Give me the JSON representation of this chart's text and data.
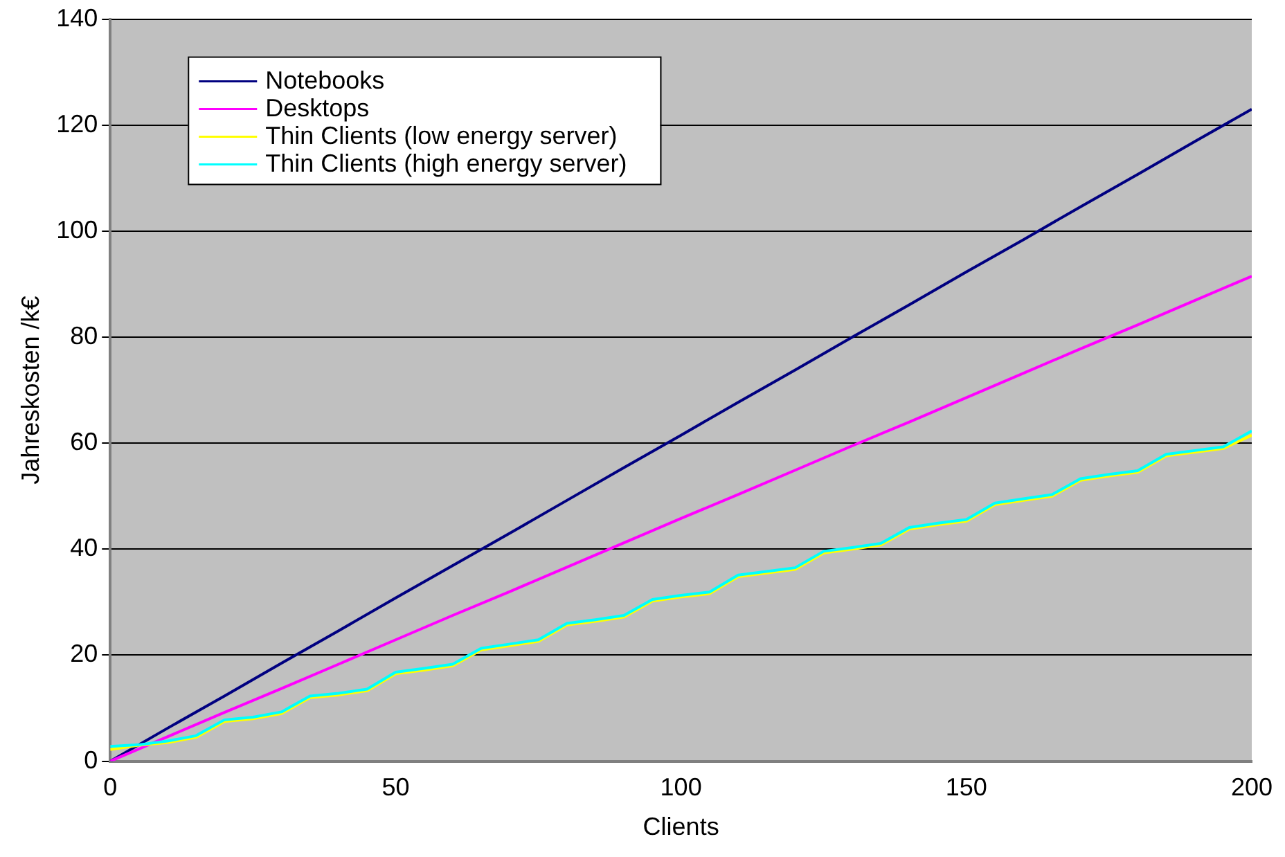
{
  "chart_data": {
    "type": "line",
    "xlabel": "Clients",
    "ylabel": "Jahreskosten /k€",
    "xlim": [
      0,
      200
    ],
    "xticks": [
      0,
      50,
      100,
      150,
      200
    ],
    "ylim": [
      0,
      140
    ],
    "yticks": [
      0,
      20,
      40,
      60,
      80,
      100,
      120,
      140
    ],
    "grid": "y",
    "legend": "top left",
    "marker": "none",
    "line_style": "solid",
    "series": [
      {
        "name": "Notebooks",
        "color": "#000080",
        "x": [
          0,
          10,
          20,
          30,
          40,
          50,
          60,
          70,
          80,
          90,
          100,
          110,
          120,
          130,
          140,
          150,
          160,
          170,
          180,
          190,
          200
        ],
        "values": [
          0,
          6.2,
          12.3,
          18.5,
          24.6,
          30.8,
          36.9,
          43,
          49.2,
          55.4,
          61.5,
          67.7,
          73.8,
          80,
          86.1,
          92.3,
          98.4,
          104.6,
          110.7,
          116.9,
          123
        ]
      },
      {
        "name": "Desktops",
        "color": "#ff00ff",
        "x": [
          0,
          10,
          20,
          30,
          40,
          50,
          60,
          70,
          80,
          90,
          100,
          110,
          120,
          130,
          140,
          150,
          160,
          170,
          180,
          190,
          200
        ],
        "values": [
          0,
          4.6,
          9.2,
          13.7,
          18.3,
          22.9,
          27.5,
          32,
          36.6,
          41.2,
          45.8,
          50.3,
          54.9,
          59.5,
          64,
          68.6,
          73.2,
          77.8,
          82.3,
          86.9,
          91.5
        ]
      },
      {
        "name": "Thin Clients (low energy server)",
        "color": "#ffff00",
        "x": [
          0,
          5,
          10,
          15,
          20,
          25,
          30,
          35,
          40,
          45,
          50,
          55,
          60,
          65,
          70,
          75,
          80,
          85,
          90,
          95,
          100,
          105,
          110,
          115,
          120,
          125,
          130,
          135,
          140,
          145,
          150,
          155,
          160,
          165,
          170,
          175,
          180,
          185,
          190,
          195,
          200
        ],
        "values": [
          2.2,
          3,
          3.5,
          4.5,
          7.5,
          8,
          9,
          12,
          12.5,
          13.3,
          16.5,
          17.2,
          18,
          21,
          21.8,
          22.6,
          25.7,
          26.4,
          27.2,
          30.2,
          31,
          31.6,
          34.8,
          35.5,
          36.2,
          39.3,
          40,
          40.8,
          43.8,
          44.6,
          45.3,
          48.4,
          49.2,
          50,
          53,
          53.8,
          54.5,
          57.6,
          58.3,
          59,
          61.5
        ]
      },
      {
        "name": "Thin Clients (high energy server)",
        "color": "#00ffff",
        "x": [
          0,
          5,
          10,
          15,
          20,
          25,
          30,
          35,
          40,
          45,
          50,
          55,
          60,
          65,
          70,
          75,
          80,
          85,
          90,
          95,
          100,
          105,
          110,
          115,
          120,
          125,
          130,
          135,
          140,
          145,
          150,
          155,
          160,
          165,
          170,
          175,
          180,
          185,
          190,
          195,
          200
        ],
        "values": [
          2.8,
          3.1,
          3.8,
          4.8,
          7.8,
          8.3,
          9.3,
          12.3,
          12.8,
          13.6,
          16.8,
          17.5,
          18.3,
          21.3,
          22.1,
          22.9,
          26,
          26.7,
          27.5,
          30.5,
          31.3,
          31.9,
          35.1,
          35.8,
          36.5,
          39.6,
          40.3,
          41.1,
          44.1,
          44.9,
          45.6,
          48.7,
          49.5,
          50.3,
          53.3,
          54.1,
          54.8,
          57.9,
          58.6,
          59.3,
          62.3
        ]
      }
    ]
  }
}
